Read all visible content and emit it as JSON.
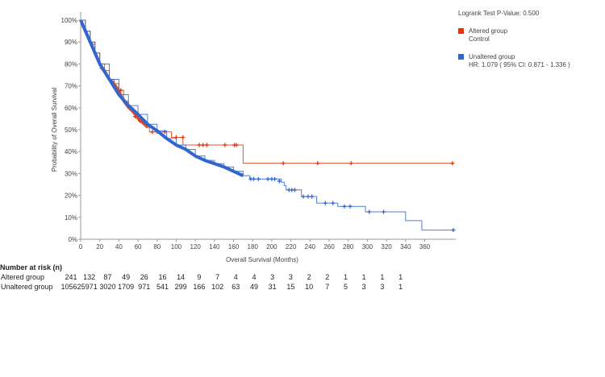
{
  "chart_data": {
    "type": "line",
    "xlabel": "Overall Survival (Months)",
    "ylabel": "Probability of Overall Survival",
    "xlim": [
      0,
      390
    ],
    "ylim": [
      0,
      100
    ],
    "xticks": [
      "0",
      "20",
      "40",
      "60",
      "80",
      "100",
      "120",
      "140",
      "160",
      "180",
      "200",
      "220",
      "240",
      "260",
      "280",
      "300",
      "320",
      "340",
      "360"
    ],
    "yticks": [
      "0%",
      "10%",
      "20%",
      "30%",
      "40%",
      "50%",
      "60%",
      "70%",
      "80%",
      "90%",
      "100%"
    ],
    "grid": false,
    "legend_position": "top-right",
    "pvalue_text": "Logrank Test P-Value: 0.500",
    "series": [
      {
        "name": "Altered group",
        "sublabel": "Control",
        "color": "#dc3912",
        "steps": [
          [
            0,
            100
          ],
          [
            5,
            95
          ],
          [
            10,
            90
          ],
          [
            15,
            85
          ],
          [
            20,
            80
          ],
          [
            25,
            77
          ],
          [
            30,
            73
          ],
          [
            35,
            71
          ],
          [
            40,
            68
          ],
          [
            45,
            63
          ],
          [
            50,
            60
          ],
          [
            55,
            58
          ],
          [
            60,
            55
          ],
          [
            65,
            53
          ],
          [
            70,
            51
          ],
          [
            72,
            49
          ],
          [
            95,
            49
          ],
          [
            95,
            46.5
          ],
          [
            107,
            46.5
          ],
          [
            107,
            43
          ],
          [
            170,
            43
          ],
          [
            170,
            34.7
          ],
          [
            390,
            34.7
          ]
        ],
        "censored": [
          [
            3,
            97
          ],
          [
            12,
            89
          ],
          [
            22,
            78
          ],
          [
            33,
            72
          ],
          [
            42,
            68
          ],
          [
            57,
            56
          ],
          [
            62,
            54
          ],
          [
            75,
            49
          ],
          [
            80,
            49
          ],
          [
            88,
            49
          ],
          [
            100,
            46.5
          ],
          [
            107,
            46.5
          ],
          [
            124,
            43
          ],
          [
            128,
            43
          ],
          [
            132,
            43
          ],
          [
            151,
            43
          ],
          [
            161,
            43
          ],
          [
            163,
            43
          ],
          [
            212,
            34.7
          ],
          [
            248,
            34.7
          ],
          [
            283,
            34.7
          ],
          [
            389,
            34.7
          ]
        ]
      },
      {
        "name": "Unaltered group",
        "sublabel": "HR: 1.079 ( 95% CI: 0.871 - 1.336 )",
        "color": "#3366cc",
        "steps": [
          [
            0,
            100
          ],
          [
            5,
            95
          ],
          [
            10,
            90
          ],
          [
            15,
            85
          ],
          [
            20,
            80
          ],
          [
            30,
            73
          ],
          [
            40,
            66
          ],
          [
            50,
            61
          ],
          [
            60,
            57
          ],
          [
            70,
            52.5
          ],
          [
            80,
            49.5
          ],
          [
            90,
            46
          ],
          [
            100,
            43
          ],
          [
            110,
            41
          ],
          [
            120,
            38
          ],
          [
            130,
            36
          ],
          [
            140,
            34.5
          ],
          [
            150,
            33
          ],
          [
            160,
            31
          ],
          [
            170,
            29
          ],
          [
            177,
            27.5
          ],
          [
            205,
            27.5
          ],
          [
            210,
            26
          ],
          [
            213,
            24.5
          ],
          [
            215,
            22.5
          ],
          [
            229,
            22.5
          ],
          [
            231,
            19.5
          ],
          [
            246,
            19.5
          ],
          [
            247,
            16.5
          ],
          [
            269,
            16.5
          ],
          [
            269,
            15
          ],
          [
            298,
            15
          ],
          [
            298,
            12.5
          ],
          [
            340,
            12.5
          ],
          [
            340,
            8.5
          ],
          [
            357,
            8.5
          ],
          [
            357,
            4.2
          ],
          [
            390,
            4.2
          ]
        ],
        "censored": [
          [
            178,
            27.5
          ],
          [
            181,
            27.5
          ],
          [
            186,
            27.5
          ],
          [
            196,
            27.5
          ],
          [
            200,
            27.5
          ],
          [
            203,
            27.5
          ],
          [
            208,
            26.5
          ],
          [
            218,
            22.5
          ],
          [
            221,
            22.5
          ],
          [
            224,
            22.5
          ],
          [
            233,
            19.5
          ],
          [
            238,
            19.5
          ],
          [
            242,
            19.5
          ],
          [
            256,
            16.5
          ],
          [
            264,
            16.5
          ],
          [
            276,
            15
          ],
          [
            282,
            15
          ],
          [
            302,
            12.5
          ],
          [
            317,
            12.5
          ],
          [
            390,
            4.2
          ]
        ]
      }
    ]
  },
  "risk_table": {
    "title": "Number at risk (n)",
    "rows": [
      {
        "label": "Altered group",
        "values": [
          "241",
          "132",
          "87",
          "49",
          "26",
          "16",
          "14",
          "9",
          "7",
          "4",
          "4",
          "3",
          "3",
          "2",
          "2",
          "1",
          "1",
          "1",
          "1"
        ]
      },
      {
        "label": "Unaltered group",
        "values": [
          "10562",
          "5971",
          "3020",
          "1709",
          "971",
          "541",
          "299",
          "166",
          "102",
          "63",
          "49",
          "31",
          "15",
          "10",
          "7",
          "5",
          "3",
          "3",
          "1"
        ]
      }
    ]
  }
}
